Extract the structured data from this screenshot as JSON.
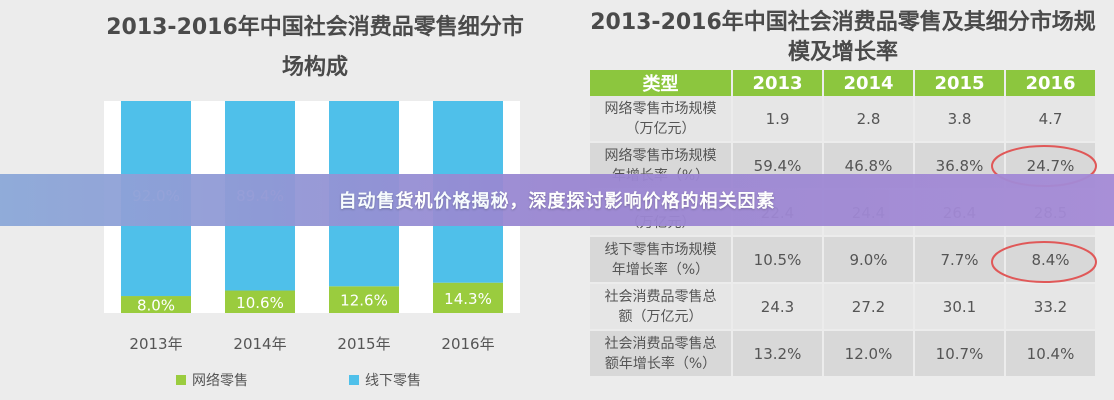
{
  "left_chart": {
    "title": "2013-2016年中国社会消费品零售细分市场构成"
  },
  "right_table": {
    "title": "2013-2016年中国社会消费品零售及其细分市场规模及增长率"
  },
  "banner": {
    "text": "自动售货机价格揭秘，深度探讨影响价格的相关因素"
  },
  "colors": {
    "online": "#9acc3e",
    "offline": "#4fc0ea",
    "table_header": "#8cc63e",
    "circle": "#e05858"
  },
  "chart_data": [
    {
      "type": "bar",
      "stacked": true,
      "percent": true,
      "title": "2013-2016年中国社会消费品零售细分市场构成",
      "categories": [
        "2013年",
        "2014年",
        "2015年",
        "2016年"
      ],
      "series": [
        {
          "name": "网络零售",
          "values": [
            8.0,
            10.6,
            12.6,
            14.3
          ],
          "labels": [
            "8.0%",
            "10.6%",
            "12.6%",
            "14.3%"
          ]
        },
        {
          "name": "线下零售",
          "values": [
            92.0,
            89.4,
            87.4,
            85.7
          ],
          "labels": [
            "92.0%",
            "89.4%",
            "",
            ""
          ]
        }
      ],
      "ylim": [
        0,
        100
      ],
      "legend": "bottom",
      "grid": false
    },
    {
      "type": "table",
      "title": "2013-2016年中国社会消费品零售及其细分市场规模及增长率",
      "columns": [
        "类型",
        "2013",
        "2014",
        "2015",
        "2016"
      ],
      "rows": [
        {
          "label_lines": [
            "网络零售市场规模",
            "（万亿元）"
          ],
          "values": [
            "1.9",
            "2.8",
            "3.8",
            "4.7"
          ]
        },
        {
          "label_lines": [
            "网络零售市场规模",
            "年增长率（%）"
          ],
          "values": [
            "59.4%",
            "46.8%",
            "36.8%",
            "24.7%"
          ]
        },
        {
          "label_lines": [
            "",
            "（万亿元）"
          ],
          "values": [
            "22.4",
            "24.4",
            "26.4",
            "28.5"
          ]
        },
        {
          "label_lines": [
            "线下零售市场规模",
            "年增长率（%）"
          ],
          "values": [
            "10.5%",
            "9.0%",
            "7.7%",
            "8.4%"
          ]
        },
        {
          "label_lines": [
            "社会消费品零售总",
            "额（万亿元）"
          ],
          "values": [
            "24.3",
            "27.2",
            "30.1",
            "33.2"
          ]
        },
        {
          "label_lines": [
            "社会消费品零售总",
            "额年增长率（%）"
          ],
          "values": [
            "13.2%",
            "12.0%",
            "10.7%",
            "10.4%"
          ]
        }
      ]
    }
  ]
}
